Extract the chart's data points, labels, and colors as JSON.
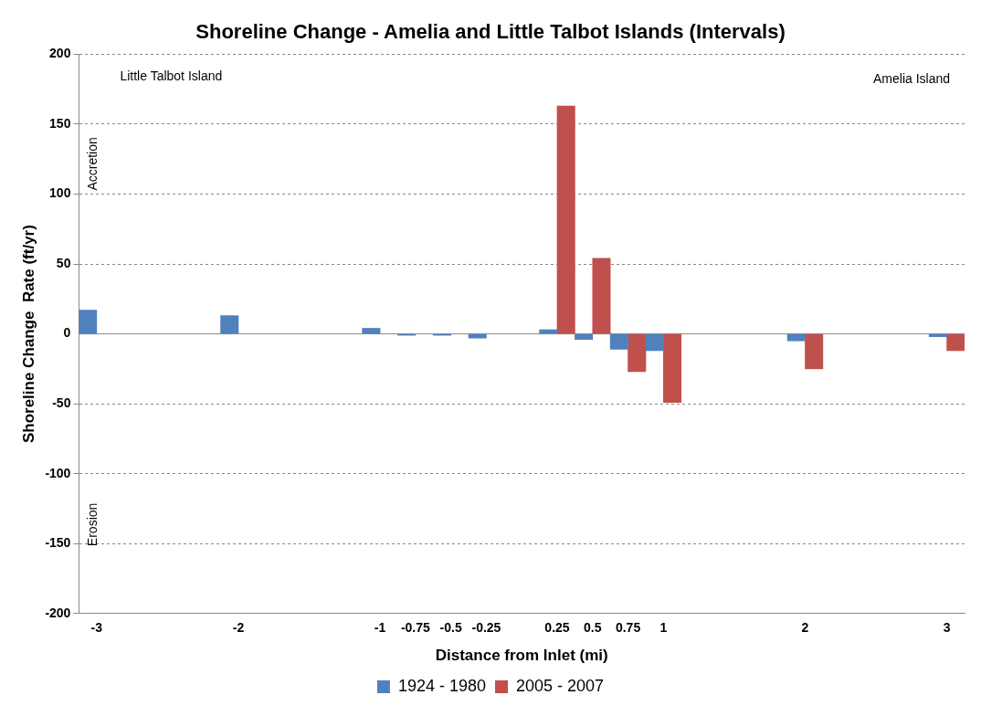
{
  "chart_data": {
    "type": "bar",
    "title": "Shoreline Change - Amelia and Little Talbot Islands (Intervals)",
    "xlabel": "Distance from Inlet (mi)",
    "ylabel": "Shoreline Change  Rate (ft/yr)",
    "categories": [
      "-3",
      null,
      null,
      null,
      "-2",
      null,
      null,
      null,
      "-1",
      "-0.75",
      "-0.5",
      "-0.25",
      null,
      "0.25",
      "0.5",
      "0.75",
      "1",
      null,
      null,
      null,
      "2",
      null,
      null,
      null,
      "3"
    ],
    "series": [
      {
        "name": "1924 - 1980",
        "color": "#4f81bd",
        "values": [
          17,
          null,
          null,
          null,
          13,
          null,
          null,
          null,
          4,
          -1,
          -1,
          -3,
          null,
          3,
          -4,
          -11,
          -12,
          null,
          null,
          null,
          -5,
          null,
          null,
          null,
          -2
        ]
      },
      {
        "name": "2005 - 2007",
        "color": "#c0504d",
        "values": [
          null,
          null,
          null,
          null,
          null,
          null,
          null,
          null,
          null,
          null,
          null,
          null,
          null,
          163,
          54,
          -27,
          -49,
          null,
          null,
          null,
          -25,
          null,
          null,
          null,
          -12
        ]
      }
    ],
    "ylim": [
      -200,
      200
    ],
    "yticks": [
      -200,
      -150,
      -100,
      -50,
      0,
      50,
      100,
      150,
      200
    ],
    "grid": "y",
    "legend": "bottom",
    "annotations": [
      "Little Talbot Island",
      "Amelia Island",
      "Accretion",
      "Erosion"
    ]
  }
}
